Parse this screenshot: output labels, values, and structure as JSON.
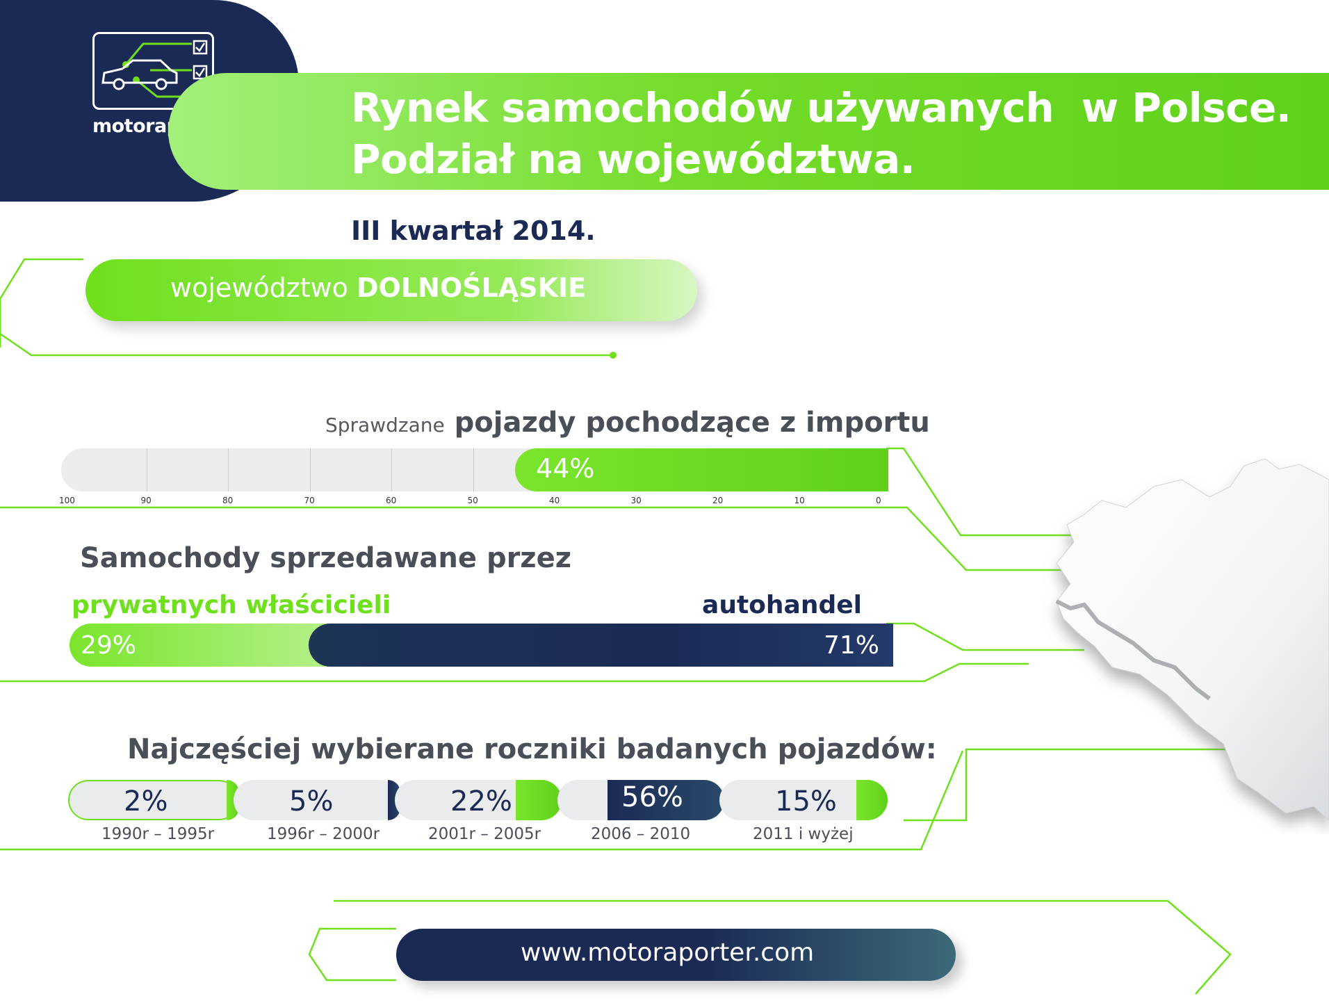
{
  "brand": {
    "name": "motoraporter",
    "colors": {
      "navy": "#1b2a55",
      "green": "#6fe01c",
      "grey": "#4a4f57"
    },
    "logo_icon": "car-checklist-icon"
  },
  "header": {
    "title_line1": "Rynek samochodów używanych  w Polsce.",
    "title_line2": "Podział na województwa.",
    "period": "III kwartał 2014."
  },
  "region": {
    "prefix": "województwo",
    "name": "DOLNOŚLĄSKIE"
  },
  "footer": {
    "url": "www.motoraporter.com"
  },
  "chart_data": [
    {
      "type": "bar",
      "title_prefix": "Sprawdzane",
      "title": "pojazdy pochodzące z importu",
      "values": [
        44
      ],
      "value_labels": [
        "44%"
      ],
      "axis_direction": "reversed",
      "ticks": [
        "100",
        "90",
        "80",
        "70",
        "60",
        "50",
        "40",
        "30",
        "20",
        "10",
        "0"
      ],
      "xlim": [
        0,
        100
      ],
      "grid": true
    },
    {
      "type": "bar",
      "title": "Samochody sprzedawane przez",
      "categories": [
        "prywatnych właścicieli",
        "autohandel"
      ],
      "values": [
        29,
        71
      ],
      "value_labels": [
        "29%",
        "71%"
      ],
      "stacked": true
    },
    {
      "type": "bar",
      "title": "Najczęściej wybierane roczniki badanych pojazdów:",
      "categories": [
        "1990r – 1995r",
        "1996r – 2000r",
        "2001r – 2005r",
        "2006 – 2010",
        "2011 i wyżej"
      ],
      "values": [
        2,
        5,
        22,
        56,
        15
      ],
      "value_labels": [
        "2%",
        "5%",
        "22%",
        "56%",
        "15%"
      ]
    }
  ]
}
